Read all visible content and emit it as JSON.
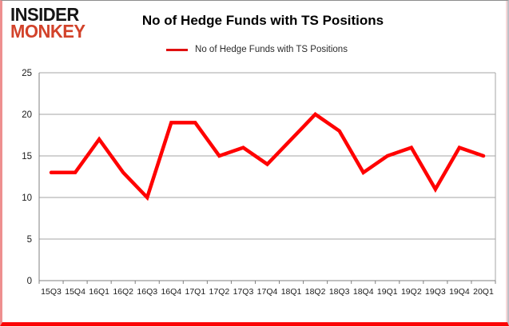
{
  "logo": {
    "line1": "INSIDER",
    "line2": "MONKEY"
  },
  "header": {
    "title": "No of Hedge Funds with TS Positions"
  },
  "legend": {
    "label": "No of Hedge Funds with TS Positions"
  },
  "colors": {
    "line": "#ff0000",
    "grid": "#a6a6a6",
    "axis": "#808080",
    "text": "#1a1a1a",
    "logo_red": "#d2422a",
    "border_bottom": "#fb0606"
  },
  "chart_data": {
    "type": "line",
    "title": "No of Hedge Funds with TS Positions",
    "categories": [
      "15Q3",
      "15Q4",
      "16Q1",
      "16Q2",
      "16Q3",
      "16Q4",
      "17Q1",
      "17Q2",
      "17Q3",
      "17Q4",
      "18Q1",
      "18Q2",
      "18Q3",
      "18Q4",
      "19Q1",
      "19Q2",
      "19Q3",
      "19Q4",
      "20Q1"
    ],
    "series": [
      {
        "name": "No of Hedge Funds with TS Positions",
        "values": [
          13,
          13,
          17,
          13,
          10,
          19,
          19,
          15,
          16,
          14,
          17,
          20,
          18,
          13,
          15,
          16,
          11,
          16,
          15
        ]
      }
    ],
    "xlabel": "",
    "ylabel": "",
    "ylim": [
      0,
      25
    ],
    "yticks": [
      0,
      5,
      10,
      15,
      20,
      25
    ],
    "grid": true,
    "legend_position": "top"
  }
}
